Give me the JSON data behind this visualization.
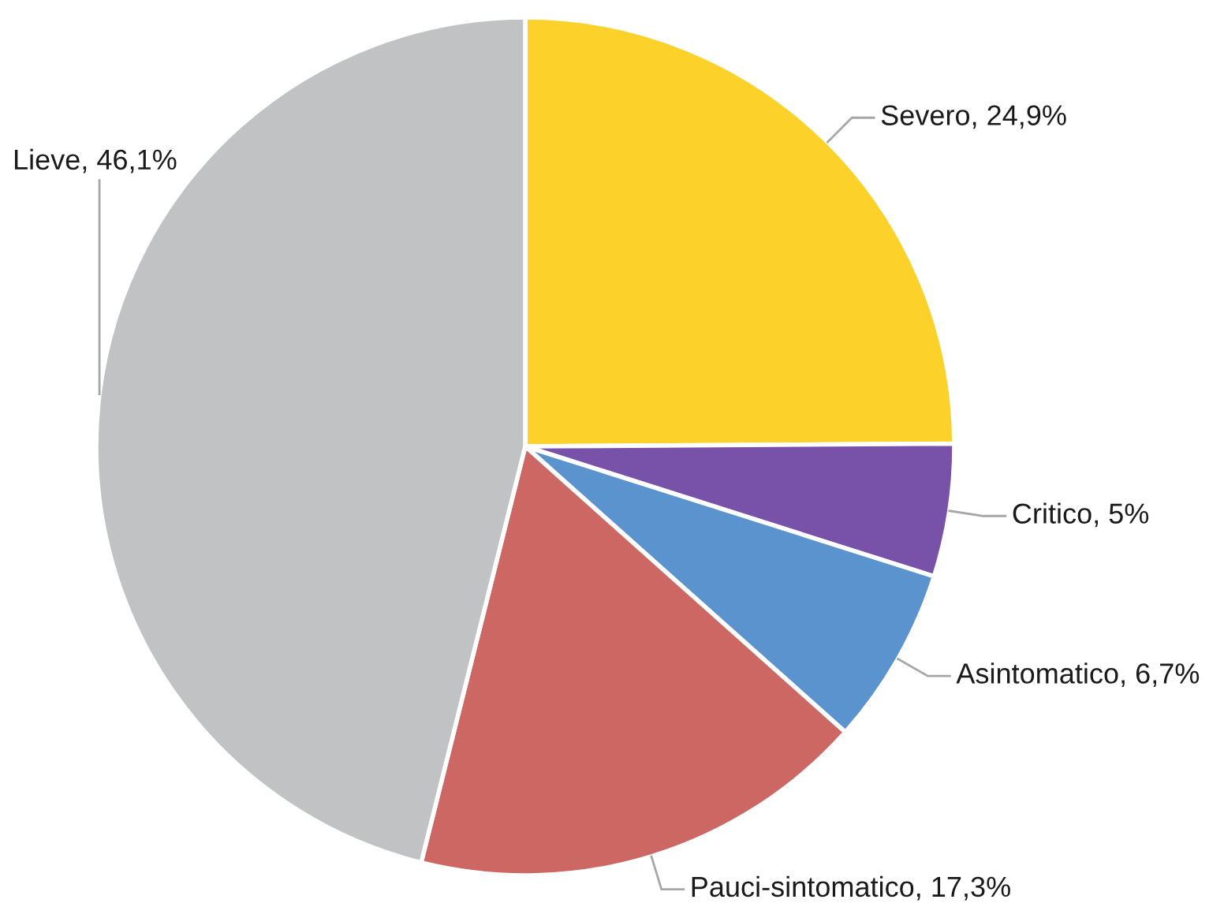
{
  "chart_data": {
    "type": "pie",
    "categories": [
      "Severo",
      "Critico",
      "Asintomatico",
      "Pauci-sintomatico",
      "Lieve"
    ],
    "values": [
      24.9,
      5,
      6.7,
      17.3,
      46.1
    ],
    "value_labels": [
      "24,9%",
      "5%",
      "6,7%",
      "17,3%",
      "46,1%"
    ],
    "colors": [
      "#fcd12a",
      "#7851a9",
      "#5b93ce",
      "#cc6763",
      "#c0c2c4"
    ]
  }
}
